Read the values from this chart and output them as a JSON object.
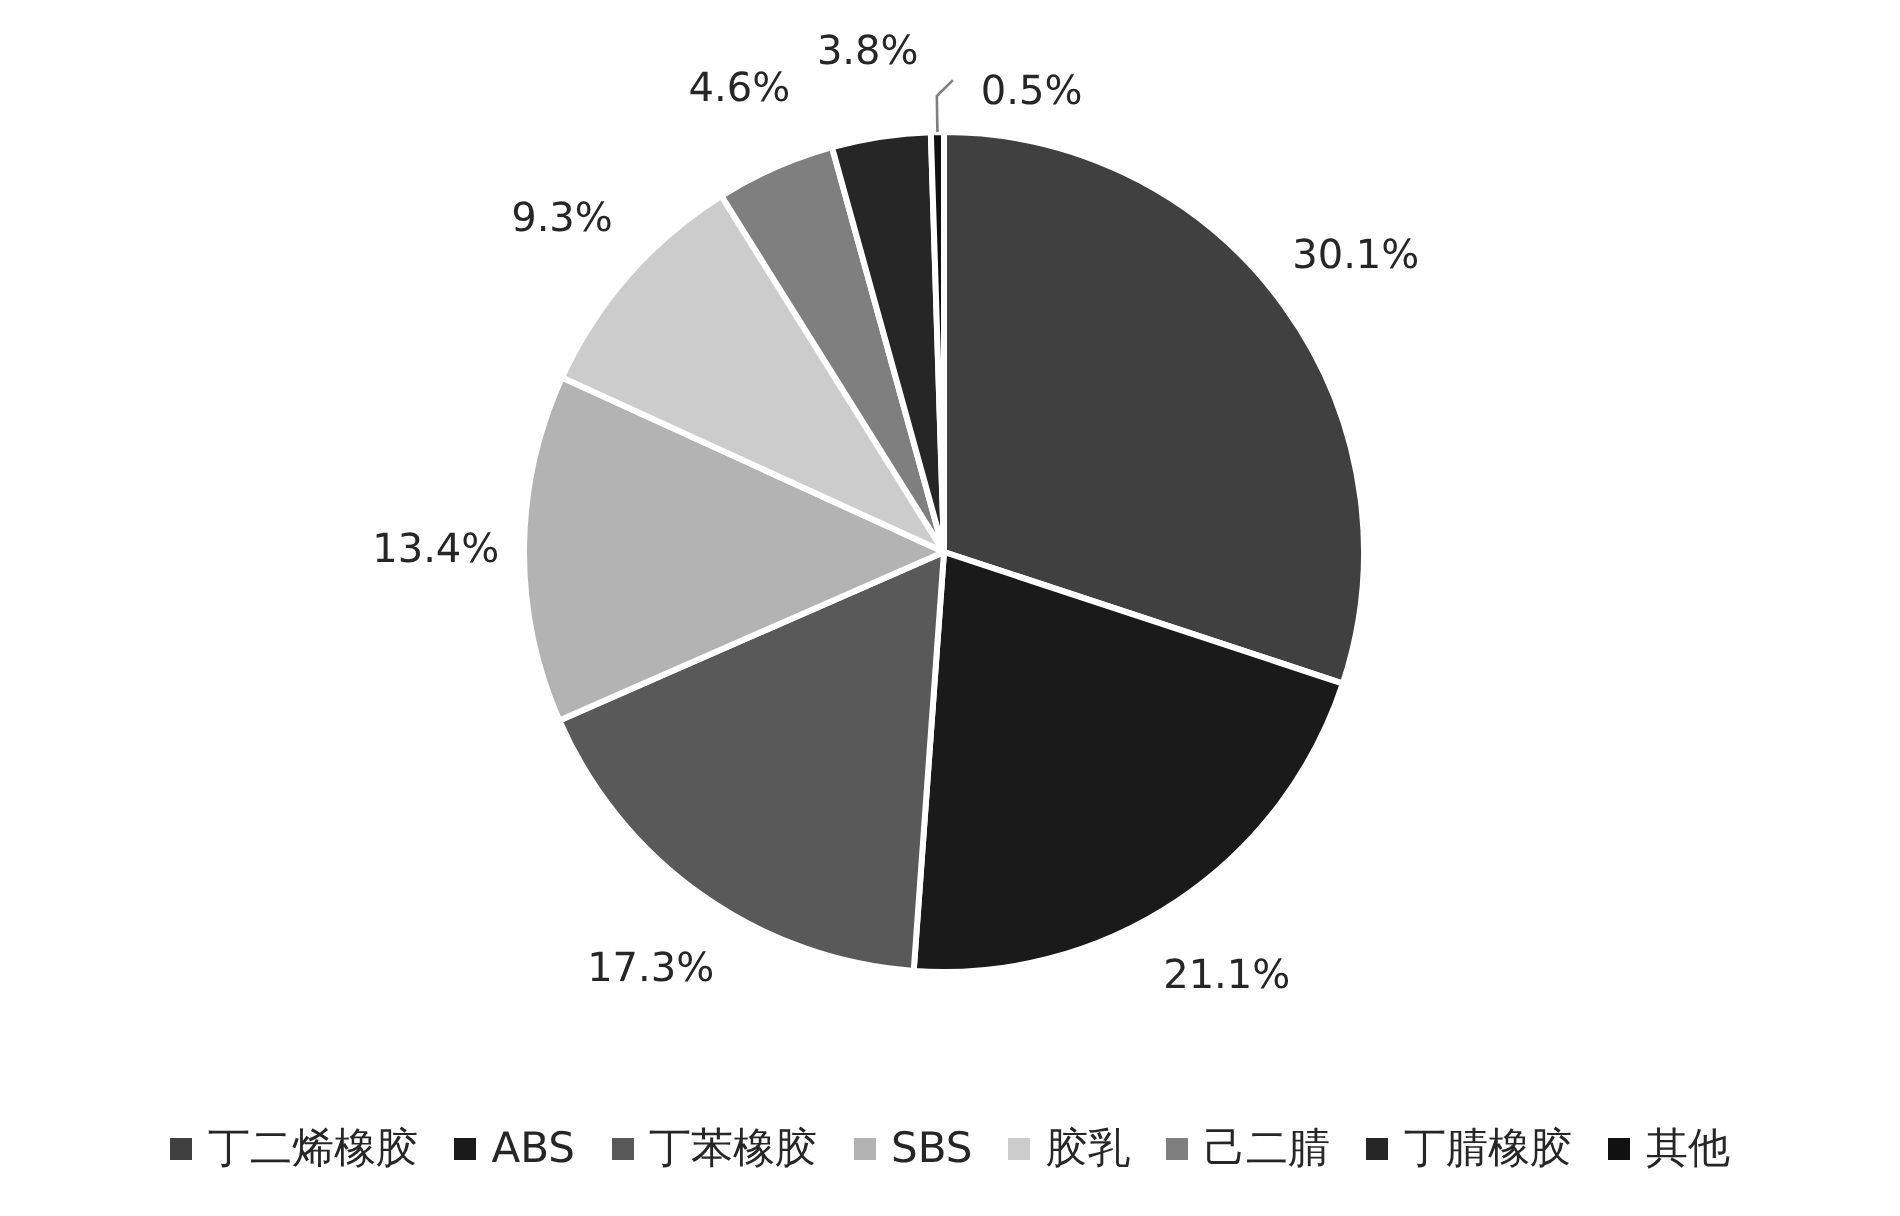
{
  "chart_data": {
    "type": "pie",
    "categories": [
      "丁二烯橡胶",
      "ABS",
      "丁苯橡胶",
      "SBS",
      "胶乳",
      "己二腈",
      "丁腈橡胶",
      "其他"
    ],
    "values": [
      30.1,
      21.1,
      17.3,
      13.4,
      9.3,
      4.6,
      3.8,
      0.5
    ],
    "value_labels": [
      "30.1%",
      "21.1%",
      "17.3%",
      "13.4%",
      "9.3%",
      "4.6%",
      "3.8%",
      "0.5%"
    ],
    "colors": [
      "#404040",
      "#1a1a1a",
      "#595959",
      "#b3b3b3",
      "#cccccc",
      "#7f7f7f",
      "#262626",
      "#111111"
    ],
    "legend": "bottom"
  }
}
